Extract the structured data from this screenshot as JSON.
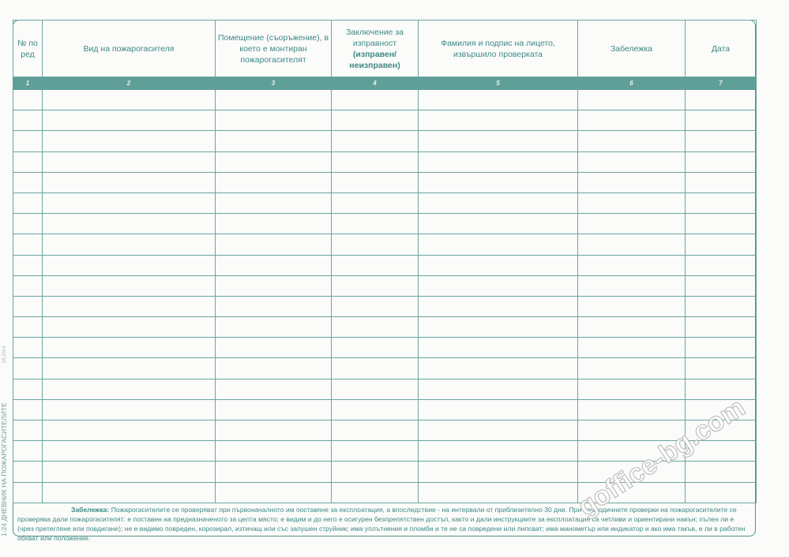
{
  "form": {
    "columns": [
      {
        "num": "1",
        "header": "№ по ред"
      },
      {
        "num": "2",
        "header": "Вид на пожарогасителя"
      },
      {
        "num": "3",
        "header": "Помещение (съоръжение), в което е монтиран пожарогасителят"
      },
      {
        "num": "4",
        "header": "Заключение за изправност",
        "header_bold": "(изправен/ неизправен)"
      },
      {
        "num": "5",
        "header": "Фамилия и подпис на лицето, извършило проверката"
      },
      {
        "num": "6",
        "header": "Забележка"
      },
      {
        "num": "7",
        "header": "Дата"
      }
    ],
    "empty_rows": 20
  },
  "note": {
    "label": "Забележка:",
    "text": "Пожарогасителите се проверяват при първоначалното им поставяне за експлоатация, а впоследствие - на интервали от приблизително 30 дни. При периодичните проверки на пожарогасителите се проверява дали пожарогасителят: е поставен на предназначеното за целта място; е видим и до него е осигурен безпрепятствен достъп, както и дали инструкциите за експлоатация са четливи и ориентирани навън; пълен ли е (чрез претегляне или повдигане); не е видимо повреден, корозирал, изтичащ или със запушен струйник; има уплътнения и пломби и те не са повредени или липсват; има манометър или индикатор и ако има такъв, е ли в работен обхват или положение."
  },
  "side_label": "1-24 ДНЕВНИК НА ПОЖАРОГАСИТЕЛИТЕ",
  "side_date": "05.2014",
  "watermark": "goffice-bg.com",
  "colors": {
    "accent": "#5f9f98",
    "line": "#6aa59f",
    "text": "#3d8a84"
  }
}
